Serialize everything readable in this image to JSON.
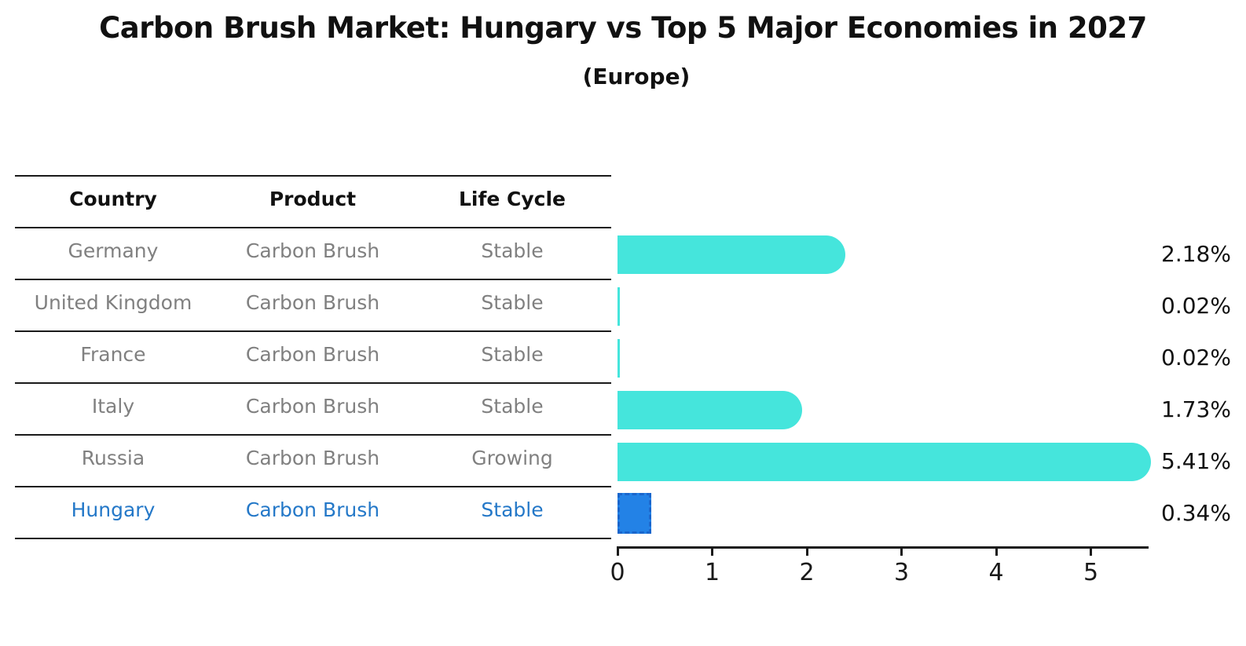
{
  "title": "Carbon Brush Market: Hungary vs Top 5 Major Economies in 2027",
  "subtitle": "(Europe)",
  "table": {
    "headers": [
      "Country",
      "Product",
      "Life Cycle"
    ],
    "rows": [
      {
        "country": "Germany",
        "product": "Carbon Brush",
        "life_cycle": "Stable",
        "highlighted": false
      },
      {
        "country": "United Kingdom",
        "product": "Carbon Brush",
        "life_cycle": "Stable",
        "highlighted": false
      },
      {
        "country": "France",
        "product": "Carbon Brush",
        "life_cycle": "Stable",
        "highlighted": false
      },
      {
        "country": "Italy",
        "product": "Carbon Brush",
        "life_cycle": "Stable",
        "highlighted": false
      },
      {
        "country": "Russia",
        "product": "Carbon Brush",
        "life_cycle": "Growing",
        "highlighted": false
      },
      {
        "country": "Hungary",
        "product": "Carbon Brush",
        "life_cycle": "Stable",
        "highlighted": true
      }
    ]
  },
  "chart_data": {
    "type": "bar",
    "orientation": "horizontal",
    "title": "Carbon Brush Market: Hungary vs Top 5 Major Economies in 2027",
    "subtitle": "(Europe)",
    "categories": [
      "Germany",
      "United Kingdom",
      "France",
      "Italy",
      "Russia",
      "Hungary"
    ],
    "values": [
      2.18,
      0.02,
      0.02,
      1.73,
      5.41,
      0.34
    ],
    "value_labels": [
      "2.18%",
      "0.02%",
      "0.02%",
      "1.73%",
      "5.41%",
      "0.34%"
    ],
    "highlighted_category": "Hungary",
    "xlabel": "",
    "ylabel": "",
    "xlim": [
      0,
      5.6
    ],
    "xticks": [
      "0",
      "1",
      "2",
      "3",
      "4",
      "5"
    ],
    "grid": false,
    "legend": "none",
    "colors": {
      "bar": "#45E5DC",
      "highlight_bar": "#2382E6",
      "highlight_bar_border": "#1A66CC",
      "highlight_text": "#2478C8",
      "table_text": "#808080",
      "header_text": "#111111",
      "axis": "#1a1a1a"
    }
  }
}
